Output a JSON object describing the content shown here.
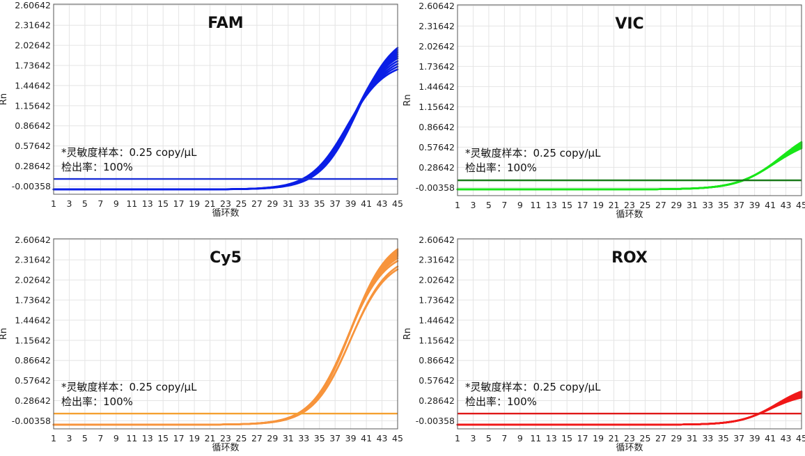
{
  "chart_data": [
    {
      "type": "line",
      "title": "FAM",
      "xlabel": "循环数",
      "ylabel": "Rn",
      "xticks": [
        "1",
        "3",
        "5",
        "7",
        "9",
        "11",
        "13",
        "15",
        "17",
        "19",
        "21",
        "23",
        "25",
        "27",
        "29",
        "31",
        "33",
        "35",
        "37",
        "39",
        "41",
        "43",
        "45"
      ],
      "yticks": [
        "2.60642",
        "2.31642",
        "2.02642",
        "1.73642",
        "1.44642",
        "1.15642",
        "0.86642",
        "0.57642",
        "0.28642",
        "-0.00358"
      ],
      "xlim": [
        1,
        45
      ],
      "ylim": [
        -0.12,
        2.62
      ],
      "grid": true,
      "color": "#0a1ee6",
      "threshold": {
        "value": 0.1,
        "color": "#1a2fd6"
      },
      "annotation": [
        "*灵敏度样本：0.25 copy/μL",
        "检出率：100%"
      ],
      "series_summary": {
        "n_curves": 10,
        "baseline": -0.05,
        "final_values": [
          1.68,
          1.72,
          1.76,
          1.8,
          1.84,
          1.87,
          1.9,
          1.93,
          1.96,
          1.99
        ],
        "midpoints": [
          38.6,
          38.8,
          39.0,
          39.1,
          39.2,
          39.3,
          39.4,
          39.5,
          39.7,
          39.9
        ],
        "slope": 0.42
      }
    },
    {
      "type": "line",
      "title": "VIC",
      "xlabel": "循环数",
      "ylabel": "Rn",
      "xticks": [
        "1",
        "3",
        "5",
        "7",
        "9",
        "11",
        "13",
        "15",
        "17",
        "19",
        "21",
        "23",
        "25",
        "27",
        "29",
        "31",
        "33",
        "35",
        "37",
        "39",
        "41",
        "43",
        "45"
      ],
      "yticks": [
        "2.60642",
        "2.31642",
        "2.02642",
        "1.73642",
        "1.44642",
        "1.15642",
        "0.86642",
        "0.57642",
        "0.28642",
        "-0.00358"
      ],
      "xlim": [
        1,
        45
      ],
      "ylim": [
        -0.12,
        2.62
      ],
      "grid": true,
      "color": "#19e619",
      "threshold": {
        "value": 0.1,
        "color": "#1a7a1a"
      },
      "annotation": [
        "*灵敏度样本：0.25 copy/μL",
        "检出率：100%"
      ],
      "series_summary": {
        "n_curves": 10,
        "baseline": -0.03,
        "final_values": [
          0.56,
          0.57,
          0.58,
          0.59,
          0.6,
          0.61,
          0.62,
          0.63,
          0.64,
          0.65
        ],
        "midpoints": [
          41.6,
          41.7,
          41.8,
          41.9,
          42.0,
          42.0,
          42.1,
          42.2,
          42.3,
          42.4
        ],
        "slope": 0.38
      }
    },
    {
      "type": "line",
      "title": "Cy5",
      "xlabel": "循环数",
      "ylabel": "Rn",
      "xticks": [
        "1",
        "3",
        "5",
        "7",
        "9",
        "11",
        "13",
        "15",
        "17",
        "19",
        "21",
        "23",
        "25",
        "27",
        "29",
        "31",
        "33",
        "35",
        "37",
        "39",
        "41",
        "43",
        "45"
      ],
      "yticks": [
        "2.60642",
        "2.31642",
        "2.02642",
        "1.73642",
        "1.44642",
        "1.15642",
        "0.86642",
        "0.57642",
        "0.28642",
        "-0.00358"
      ],
      "xlim": [
        1,
        45
      ],
      "ylim": [
        -0.12,
        2.62
      ],
      "grid": true,
      "color": "#f7943c",
      "threshold": {
        "value": 0.1,
        "color": "#f5a030"
      },
      "annotation": [
        "*灵敏度样本：0.25 copy/μL",
        "检出率：100%"
      ],
      "series_summary": {
        "n_curves": 10,
        "baseline": -0.06,
        "final_values": [
          2.18,
          2.22,
          2.3,
          2.34,
          2.37,
          2.39,
          2.41,
          2.43,
          2.45,
          2.47
        ],
        "midpoints": [
          38.9,
          39.0,
          38.6,
          38.7,
          38.8,
          38.8,
          38.9,
          38.9,
          39.0,
          39.0
        ],
        "slope": 0.42
      }
    },
    {
      "type": "line",
      "title": "ROX",
      "xlabel": "循环数",
      "ylabel": "Rn",
      "xticks": [
        "1",
        "3",
        "5",
        "7",
        "9",
        "11",
        "13",
        "15",
        "17",
        "19",
        "21",
        "23",
        "25",
        "27",
        "29",
        "31",
        "33",
        "35",
        "37",
        "39",
        "41",
        "43",
        "45"
      ],
      "yticks": [
        "2.60642",
        "2.31642",
        "2.02642",
        "1.73642",
        "1.44642",
        "1.15642",
        "0.86642",
        "0.57642",
        "0.28642",
        "-0.00358"
      ],
      "xlim": [
        1,
        45
      ],
      "ylim": [
        -0.12,
        2.62
      ],
      "grid": true,
      "color": "#f01818",
      "threshold": {
        "value": 0.1,
        "color": "#e01818"
      },
      "annotation": [
        "*灵敏度样本：0.25 copy/μL",
        "检出率：100%"
      ],
      "series_summary": {
        "n_curves": 10,
        "baseline": -0.06,
        "final_values": [
          0.33,
          0.34,
          0.35,
          0.36,
          0.37,
          0.38,
          0.39,
          0.4,
          0.41,
          0.42
        ],
        "midpoints": [
          41.0,
          41.1,
          41.2,
          41.3,
          41.4,
          41.4,
          41.5,
          41.6,
          41.7,
          41.8
        ],
        "slope": 0.45
      }
    }
  ]
}
